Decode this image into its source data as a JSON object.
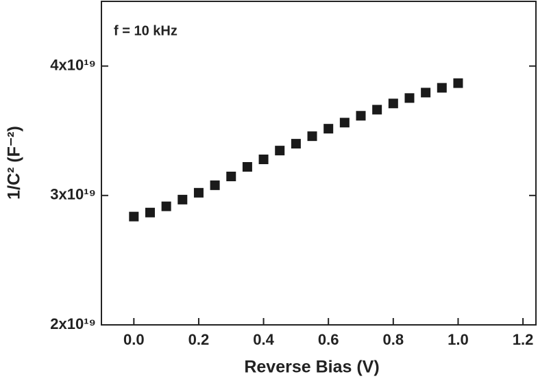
{
  "chart_data": {
    "type": "scatter",
    "annotation": "f = 10 kHz",
    "x_label": "Reverse Bias (V)",
    "y_label": "1/C² (F⁻²)",
    "x": [
      0,
      0.05,
      0.1,
      0.15,
      0.2,
      0.25,
      0.3,
      0.35,
      0.4,
      0.45,
      0.5,
      0.55,
      0.6,
      0.65,
      0.7,
      0.75,
      0.8,
      0.85,
      0.9,
      0.95,
      1.0
    ],
    "values": [
      2.837e+19,
      2.868e+19,
      2.916e+19,
      2.968e+19,
      3.021e+19,
      3.079e+19,
      3.147e+19,
      3.221e+19,
      3.279e+19,
      3.347e+19,
      3.4e+19,
      3.458e+19,
      3.516e+19,
      3.563e+19,
      3.616e+19,
      3.663e+19,
      3.711e+19,
      3.753e+19,
      3.795e+19,
      3.832e+19,
      3.868e+19
    ],
    "color": "#1a1a1a",
    "marker": "square",
    "xlim": [
      -0.1,
      1.24
    ],
    "ylim": [
      2e+19,
      4.5e+19
    ],
    "xticks": [
      {
        "value": 0,
        "label": "0.0"
      },
      0.2,
      0.4,
      0.6,
      0.8,
      {
        "value": 1,
        "label": "1.0"
      },
      1.2
    ],
    "yticks": [
      {
        "value": 2e+19,
        "label": "2x10¹⁹"
      },
      {
        "value": 3e+19,
        "label": "3x10¹⁹"
      },
      {
        "value": 4e+19,
        "label": "4x10¹⁹"
      }
    ]
  }
}
